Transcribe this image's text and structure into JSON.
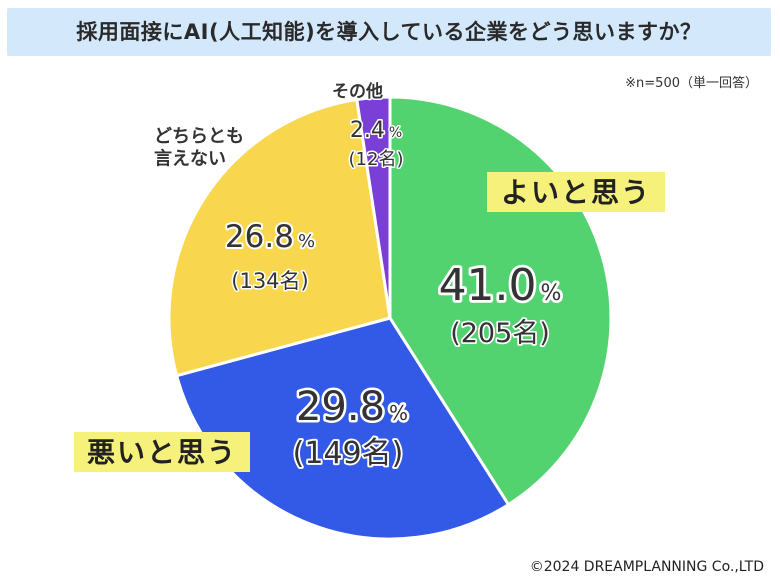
{
  "title": "採用面接にAI(人工知能)を導入している企業をどう思いますか？",
  "note": "※n=500（単一回答）",
  "copyright": "©2024 DREAMPLANNING Co.,LTD",
  "chart_data": {
    "type": "pie",
    "title": "採用面接にAI(人工知能)を導入している企業をどう思いますか？",
    "slices": [
      {
        "label": "よいと思う",
        "value": 41.0,
        "pct_text": "41.0",
        "count_text": "(205名)",
        "color": "#53d36f"
      },
      {
        "label": "悪いと思う",
        "value": 29.8,
        "pct_text": "29.8",
        "count_text": "(149名)",
        "color": "#335ae6"
      },
      {
        "label": "どちらとも言えない",
        "value": 26.8,
        "pct_text": "26.8",
        "count_text": "(134名)",
        "color": "#f8d74f"
      },
      {
        "label": "その他",
        "value": 2.4,
        "pct_text": "2.4",
        "count_text": "(12名)",
        "color": "#7a3fd6"
      }
    ],
    "unit": "%",
    "label_highlight_color": "#f5f17a"
  }
}
